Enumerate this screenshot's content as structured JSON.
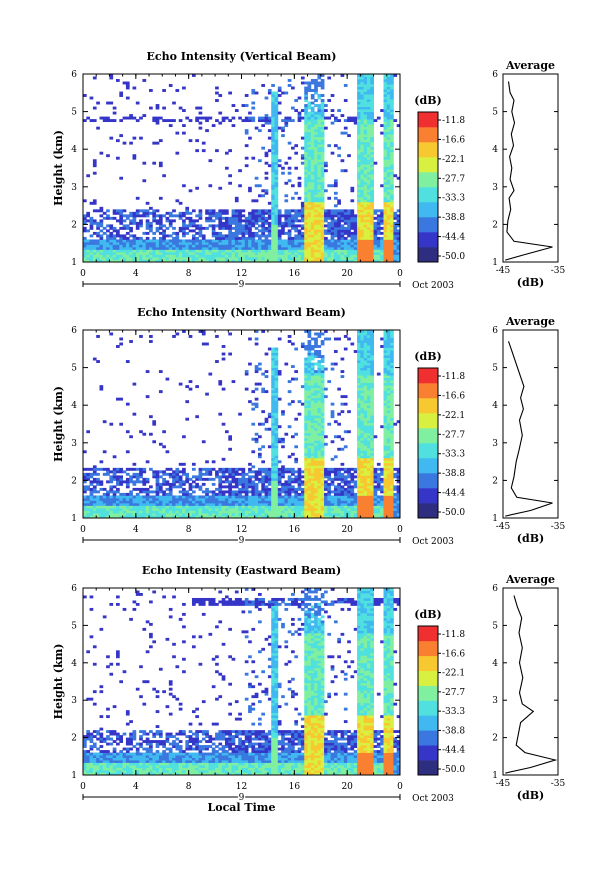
{
  "chart_data": [
    {
      "type": "heatmap",
      "title": "Echo Intensity (Vertical Beam)",
      "xlabel": "",
      "ylabel": "Height (km)",
      "x_ticks": [
        "0",
        "4",
        "8",
        "12",
        "16",
        "20",
        "0"
      ],
      "date_label": "9",
      "month_label": "Oct 2003",
      "y_ticks": [
        "1",
        "2",
        "3",
        "4",
        "5",
        "6"
      ],
      "ylim": [
        1,
        6
      ],
      "xlim": [
        0,
        24
      ],
      "colorbar": {
        "unit": "(dB)",
        "ticks": [
          "-11.8",
          "-16.6",
          "-22.1",
          "-27.7",
          "-33.3",
          "-38.8",
          "-44.4",
          "-50.0"
        ]
      },
      "average_profile": {
        "title": "Average",
        "xlabel": "(dB)",
        "x_ticks": [
          "-45",
          "-35"
        ],
        "xlim": [
          -45,
          -35
        ],
        "y_ticks": [
          "1",
          "2",
          "3",
          "4",
          "5",
          "6"
        ],
        "points": [
          [
            -44.6,
            1.05
          ],
          [
            -41,
            1.2
          ],
          [
            -36,
            1.4
          ],
          [
            -43,
            1.55
          ],
          [
            -44.3,
            1.8
          ],
          [
            -44.1,
            2.1
          ],
          [
            -43.6,
            2.4
          ],
          [
            -43.9,
            2.7
          ],
          [
            -43.0,
            2.9
          ],
          [
            -43.7,
            3.2
          ],
          [
            -43.4,
            3.5
          ],
          [
            -43.8,
            3.8
          ],
          [
            -43.1,
            4.1
          ],
          [
            -43.5,
            4.4
          ],
          [
            -42.9,
            4.7
          ],
          [
            -43.4,
            5.0
          ],
          [
            -43.0,
            5.3
          ],
          [
            -43.7,
            5.5
          ],
          [
            -44.0,
            5.8
          ]
        ]
      }
    },
    {
      "type": "heatmap",
      "title": "Echo Intensity (Northward Beam)",
      "xlabel": "",
      "ylabel": "Height (km)",
      "x_ticks": [
        "0",
        "4",
        "8",
        "12",
        "16",
        "20",
        "0"
      ],
      "date_label": "9",
      "month_label": "Oct 2003",
      "y_ticks": [
        "1",
        "2",
        "3",
        "4",
        "5",
        "6"
      ],
      "ylim": [
        1,
        6
      ],
      "xlim": [
        0,
        24
      ],
      "colorbar": {
        "unit": "(dB)",
        "ticks": [
          "-11.8",
          "-16.6",
          "-22.1",
          "-27.7",
          "-33.3",
          "-38.8",
          "-44.4",
          "-50.0"
        ]
      },
      "average_profile": {
        "title": "Average",
        "xlabel": "(dB)",
        "x_ticks": [
          "-45",
          "-35"
        ],
        "xlim": [
          -45,
          -35
        ],
        "y_ticks": [
          "1",
          "2",
          "3",
          "4",
          "5",
          "6"
        ],
        "points": [
          [
            -44.6,
            1.05
          ],
          [
            -40,
            1.2
          ],
          [
            -36,
            1.4
          ],
          [
            -42.5,
            1.55
          ],
          [
            -43.5,
            1.8
          ],
          [
            -43.0,
            2.1
          ],
          [
            -42.6,
            2.5
          ],
          [
            -42.1,
            2.8
          ],
          [
            -41.5,
            3.2
          ],
          [
            -42.0,
            3.6
          ],
          [
            -41.3,
            3.9
          ],
          [
            -41.8,
            4.2
          ],
          [
            -41.2,
            4.5
          ],
          [
            -41.9,
            4.8
          ],
          [
            -42.6,
            5.1
          ],
          [
            -43.3,
            5.4
          ],
          [
            -44.0,
            5.7
          ]
        ]
      }
    },
    {
      "type": "heatmap",
      "title": "Echo Intensity (Eastward Beam)",
      "xlabel": "Local Time",
      "ylabel": "Height (km)",
      "x_ticks": [
        "0",
        "4",
        "8",
        "12",
        "16",
        "20",
        "0"
      ],
      "date_label": "9",
      "month_label": "Oct 2003",
      "y_ticks": [
        "1",
        "2",
        "3",
        "4",
        "5",
        "6"
      ],
      "ylim": [
        1,
        6
      ],
      "xlim": [
        0,
        24
      ],
      "colorbar": {
        "unit": "(dB)",
        "ticks": [
          "-11.8",
          "-16.6",
          "-22.1",
          "-27.7",
          "-33.3",
          "-38.8",
          "-44.4",
          "-50.0"
        ]
      },
      "average_profile": {
        "title": "Average",
        "xlabel": "(dB)",
        "x_ticks": [
          "-45",
          "-35"
        ],
        "xlim": [
          -45,
          -35
        ],
        "y_ticks": [
          "1",
          "2",
          "3",
          "4",
          "5",
          "6"
        ],
        "points": [
          [
            -44.6,
            1.05
          ],
          [
            -40,
            1.2
          ],
          [
            -35.5,
            1.4
          ],
          [
            -41,
            1.6
          ],
          [
            -42.6,
            1.8
          ],
          [
            -42.2,
            2.1
          ],
          [
            -41.8,
            2.4
          ],
          [
            -39.5,
            2.7
          ],
          [
            -41.5,
            2.9
          ],
          [
            -42.0,
            3.2
          ],
          [
            -41.4,
            3.6
          ],
          [
            -42.0,
            4.0
          ],
          [
            -41.5,
            4.4
          ],
          [
            -42.1,
            4.8
          ],
          [
            -41.6,
            5.2
          ],
          [
            -42.4,
            5.5
          ],
          [
            -43.0,
            5.8
          ]
        ]
      }
    }
  ]
}
